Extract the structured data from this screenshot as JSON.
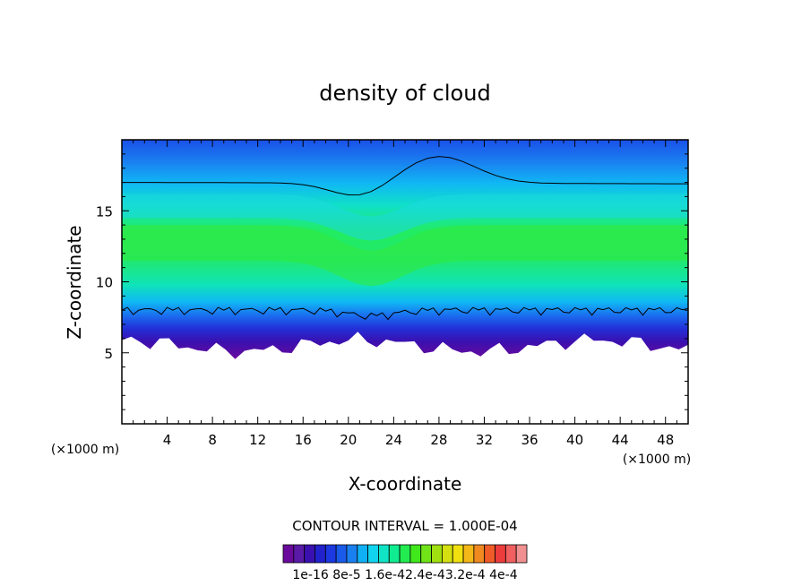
{
  "chart_data": {
    "type": "contour",
    "title": "density of cloud",
    "xlabel": "X-coordinate",
    "ylabel": "Z-coordinate",
    "x_unit": "(×1000 m)",
    "z_unit": "(×1000 m)",
    "xlim": [
      0,
      50
    ],
    "ylim": [
      0,
      20
    ],
    "x_ticks": [
      "4",
      "8",
      "12",
      "16",
      "20",
      "24",
      "28",
      "32",
      "36",
      "40",
      "44",
      "48"
    ],
    "x_tick_values": [
      4,
      8,
      12,
      16,
      20,
      24,
      28,
      32,
      36,
      40,
      44,
      48
    ],
    "y_ticks": [
      "5",
      "10",
      "15"
    ],
    "y_tick_values": [
      5,
      10,
      15
    ],
    "cloud_base_km": 5.5,
    "cloud_top_km": 19.8,
    "contour_interval_label": "CONTOUR INTERVAL = 1.000E-04",
    "colorbar": {
      "labels": [
        "1e-16",
        "8e-5",
        "1.6e-4",
        "2.4e-4",
        "3.2e-4",
        "4e-4"
      ],
      "label_text": "1e-16 8e-5 1.6e-42.4e-43.2e-4 4e-4",
      "colors": [
        "#6a0a9c",
        "#5a1aa8",
        "#3a10b0",
        "#2222cc",
        "#1c38e0",
        "#1a5ae8",
        "#1a80f0",
        "#10b0f4",
        "#10d4f0",
        "#10e4c4",
        "#10ec90",
        "#22ec50",
        "#40e81c",
        "#70e418",
        "#a0e010",
        "#d4e010",
        "#f0e010",
        "#f4b818",
        "#f08a20",
        "#f05c28",
        "#ec3c3c",
        "#f06060",
        "#f09090"
      ]
    }
  }
}
